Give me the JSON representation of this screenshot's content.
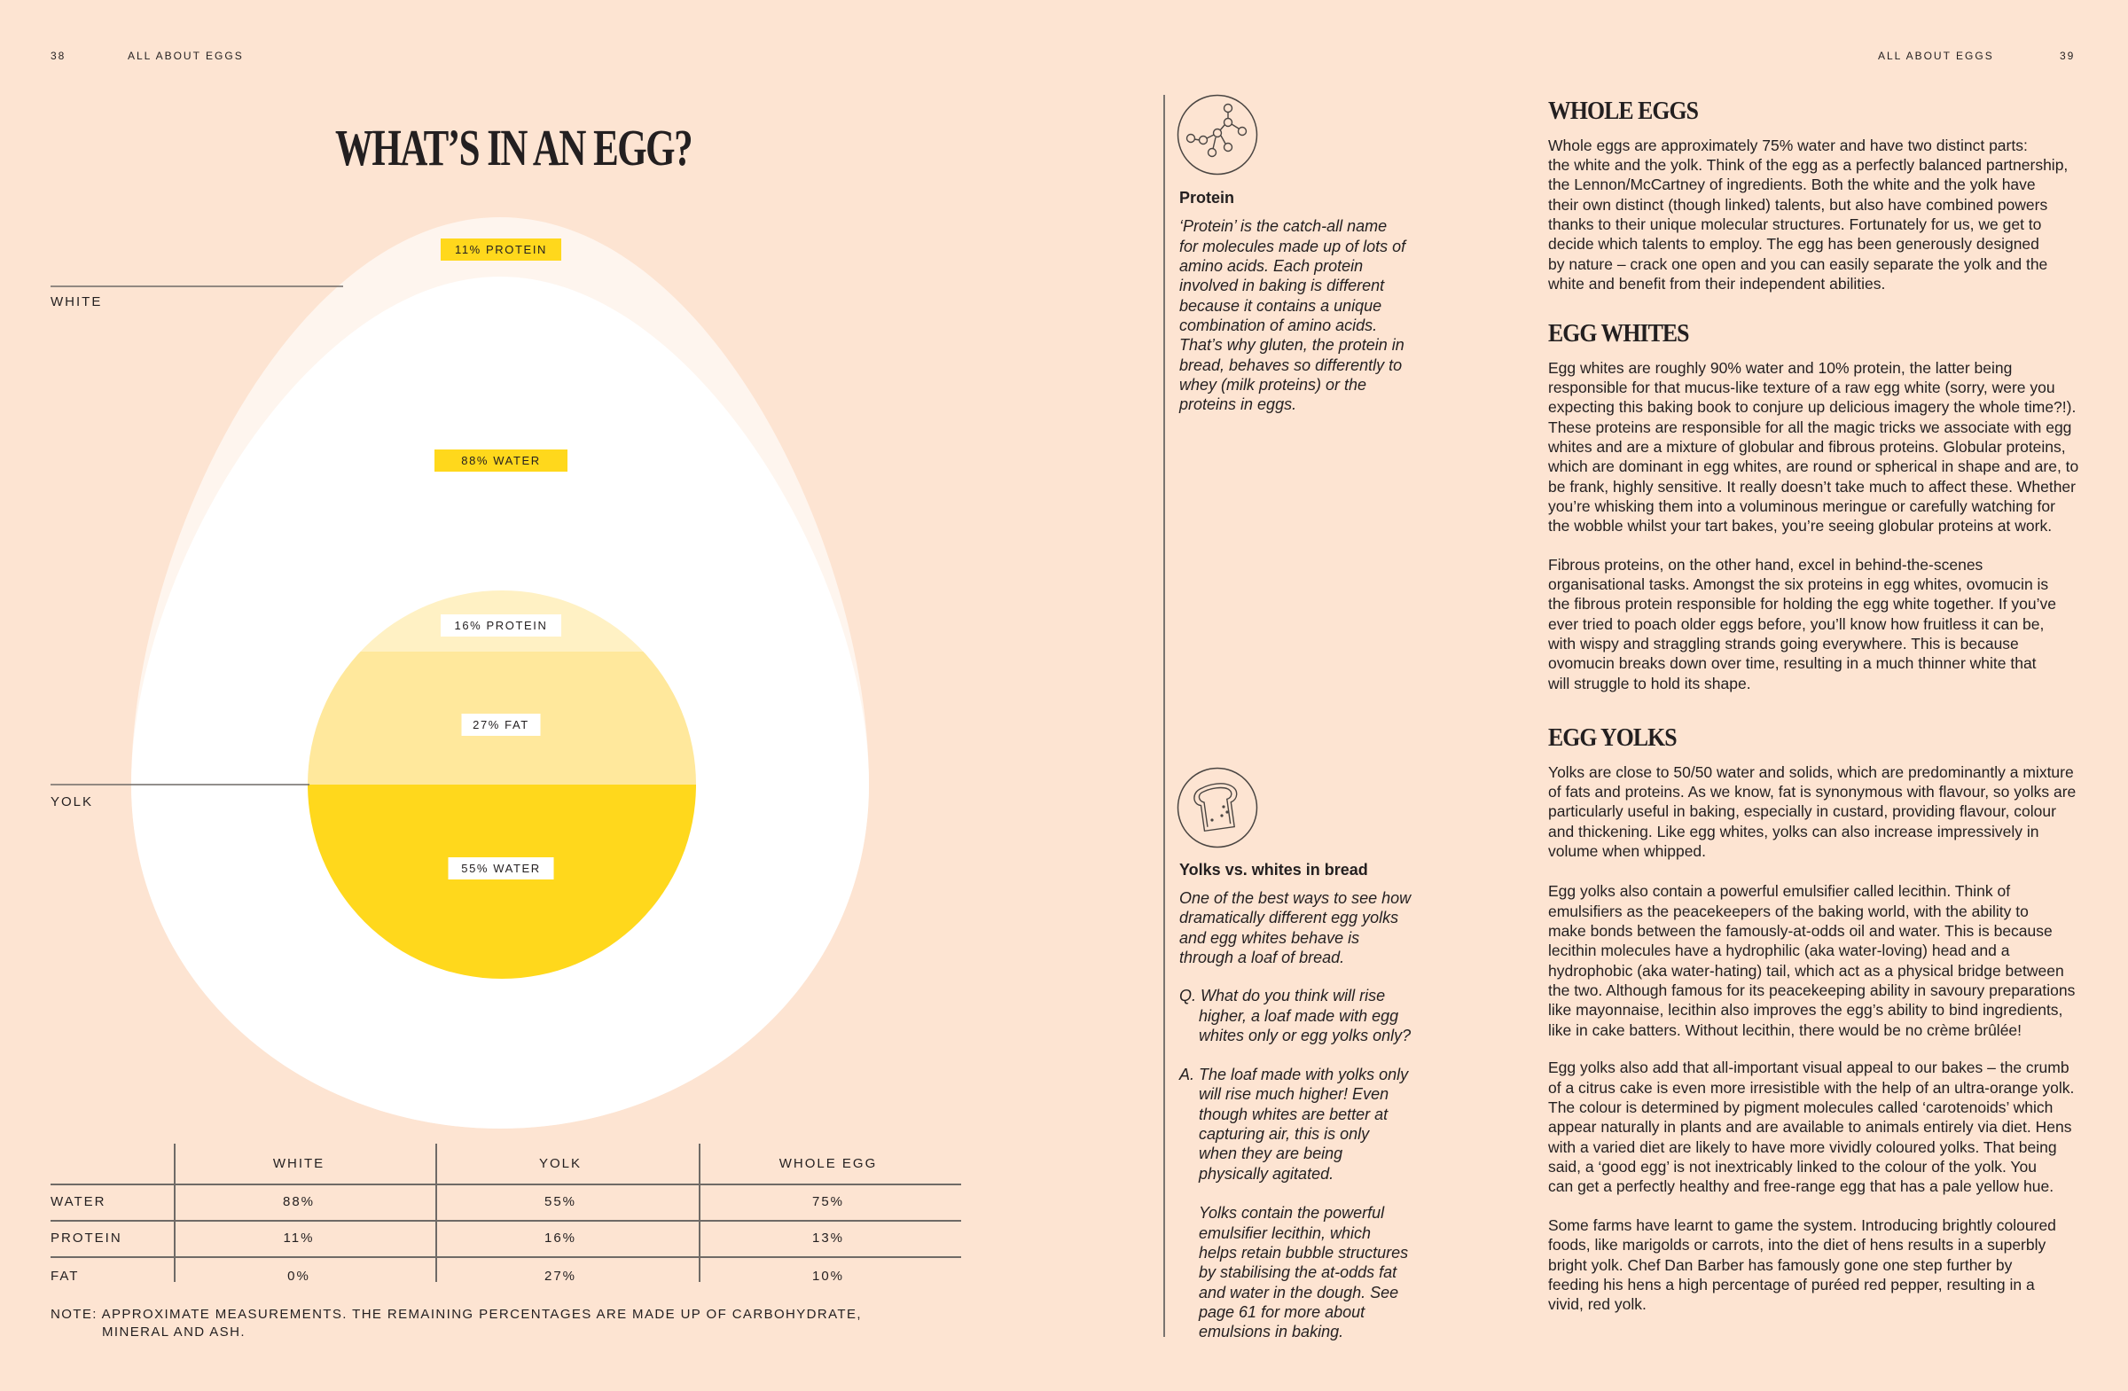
{
  "header": {
    "left_page_number": "38",
    "left_running_title": "ALL ABOUT EGGS",
    "right_running_title": "ALL ABOUT EGGS",
    "right_page_number": "39"
  },
  "infographic": {
    "title": "WHAT’S IN AN EGG?",
    "white_label": "WHITE",
    "yolk_label": "YOLK",
    "white_protein_label": "11% PROTEIN",
    "white_water_label": "88% WATER",
    "yolk_protein_label": "16% PROTEIN",
    "yolk_fat_label": "27% FAT",
    "yolk_water_label": "55% WATER",
    "colors": {
      "white_outer": "#fef5ee",
      "white_inner": "#ffffff",
      "yolk_protein": "#fff1c4",
      "yolk_fat": "#ffe89c",
      "yolk_water": "#ffd81c",
      "label_highlight": "#ffd81c"
    }
  },
  "table": {
    "columns": [
      "WHITE",
      "YOLK",
      "WHOLE EGG"
    ],
    "rows": [
      {
        "label": "WATER",
        "values": [
          "88%",
          "55%",
          "75%"
        ]
      },
      {
        "label": "PROTEIN",
        "values": [
          "11%",
          "16%",
          "13%"
        ]
      },
      {
        "label": "FAT",
        "values": [
          "0%",
          "27%",
          "10%"
        ]
      }
    ],
    "note_lines": [
      "NOTE: APPROXIMATE MEASUREMENTS. THE REMAINING PERCENTAGES ARE MADE UP OF CARBOHYDRATE,",
      "MINERAL AND ASH."
    ]
  },
  "sidebar": {
    "protein": {
      "icon": "molecule-icon",
      "heading": "Protein",
      "lines": [
        "‘Protein’ is the catch-all name",
        "for molecules made up of lots of",
        "amino acids. Each protein",
        "involved in baking is different",
        "because it contains a unique",
        "combination of amino acids.",
        "That’s why gluten, the protein in",
        "bread, behaves so differently to",
        "whey (milk proteins) or the",
        "proteins in eggs."
      ]
    },
    "bread": {
      "icon": "bread-slice-icon",
      "heading": "Yolks vs. whites in bread",
      "intro": [
        "One of the best ways to see how",
        "dramatically different egg yolks",
        "and egg whites behave is",
        "through a loaf of bread."
      ],
      "question": [
        "Q. What do you think will rise",
        "higher, a loaf made with egg",
        "whites only or egg yolks only?"
      ],
      "answer": [
        "A. The loaf made with yolks only",
        "will rise much higher! Even",
        "though whites are better at",
        "capturing air, this is only",
        "when they are being",
        "physically agitated."
      ],
      "answer_more": [
        "Yolks contain the powerful",
        "emulsifier lecithin, which",
        "helps retain bubble structures",
        "by stabilising the at-odds fat",
        "and water in the dough. See",
        "page 61 for more about",
        "emulsions in baking."
      ]
    }
  },
  "article": {
    "sections": [
      {
        "heading": "WHOLE EGGS",
        "paragraphs": [
          [
            "Whole eggs are approximately 75% water and have two distinct parts:",
            "the white and the yolk. Think of the egg as a perfectly balanced partnership,",
            "the Lennon/McCartney of ingredients. Both the white and the yolk have",
            "their own distinct (though linked) talents, but also have combined powers",
            "thanks to their unique molecular structures. Fortunately for us, we get to",
            "decide which talents to employ. The egg has been generously designed",
            "by nature – crack one open and you can easily separate the yolk and the",
            "white and benefit from their independent abilities."
          ]
        ]
      },
      {
        "heading": "EGG WHITES",
        "paragraphs": [
          [
            "Egg whites are roughly 90% water and 10% protein, the latter being",
            "responsible for that mucus-like texture of a raw egg white (sorry, were you",
            "expecting this baking book to conjure up delicious imagery the whole time?!).",
            "These proteins are responsible for all the magic tricks we associate with egg",
            "whites and are a mixture of globular and fibrous proteins. Globular proteins,",
            "which are dominant in egg whites, are round or spherical in shape and are, to",
            "be frank, highly sensitive. It really doesn’t take much to affect these. Whether",
            "you’re whisking them into a voluminous meringue or carefully watching for",
            "the wobble whilst your tart bakes, you’re seeing globular proteins at work."
          ],
          [
            "Fibrous proteins, on the other hand, excel in behind-the-scenes",
            "organisational tasks. Amongst the six proteins in egg whites, ovomucin is",
            "the fibrous protein responsible for holding the egg white together. If you’ve",
            "ever tried to poach older eggs before, you’ll know how fruitless it can be,",
            "with wispy and straggling strands going everywhere. This is because",
            "ovomucin breaks down over time, resulting in a much thinner white that",
            "will struggle to hold its shape."
          ]
        ]
      },
      {
        "heading": "EGG YOLKS",
        "paragraphs": [
          [
            "Yolks are close to 50/50 water and solids, which are predominantly a mixture",
            "of fats and proteins. As we know, fat is synonymous with flavour, so yolks are",
            "particularly useful in baking, especially in custard, providing flavour, colour",
            "and thickening. Like egg whites, yolks can also increase impressively in",
            "volume when whipped."
          ],
          [
            "Egg yolks also contain a powerful emulsifier called lecithin. Think of",
            "emulsifiers as the peacekeepers of the baking world, with the ability to",
            "make bonds between the famously-at-odds oil and water. This is because",
            "lecithin molecules have a hydrophilic (aka water-loving) head and a",
            "hydrophobic (aka water-hating) tail, which act as a physical bridge between",
            "the two. Although famous for its peacekeeping ability in savoury preparations",
            "like mayonnaise, lecithin also improves the egg’s ability to bind ingredients,",
            "like in cake batters. Without lecithin, there would be no crème brûlée!"
          ],
          [
            "Egg yolks also add that all-important visual appeal to our bakes – the crumb",
            "of a citrus cake is even more irresistible with the help of an ultra-orange yolk.",
            "The colour is determined by pigment molecules called ‘carotenoids’ which",
            "appear naturally in plants and are available to animals entirely via diet. Hens",
            "with a varied diet are likely to have more vividly coloured yolks. That being",
            "said, a ‘good egg’ is not inextricably linked to the colour of the yolk. You",
            "can get a perfectly healthy and free-range egg that has a pale yellow hue."
          ],
          [
            "Some farms have learnt to game the system. Introducing brightly coloured",
            "foods, like marigolds or carrots, into the diet of hens results in a superbly",
            "bright yolk. Chef Dan Barber has famously gone one step further by",
            "feeding his hens a high percentage of puréed red pepper, resulting in a",
            "vivid, red yolk."
          ]
        ]
      }
    ]
  }
}
